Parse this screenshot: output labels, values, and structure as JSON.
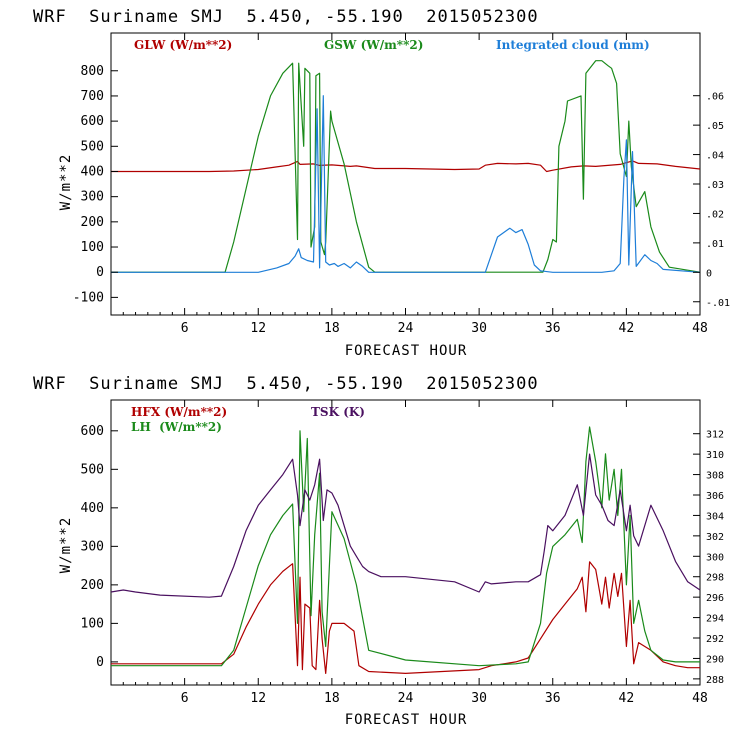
{
  "chart_data": [
    {
      "type": "line",
      "title": "WRF  Suriname SMJ  5.450, -55.190  2015052300",
      "xlabel": "FORECAST HOUR",
      "ylabel": "W/m**2",
      "xlim": [
        0,
        48
      ],
      "ylim": [
        -170,
        950
      ],
      "y2lim": [
        -0.0145,
        0.0813
      ],
      "xticks": [
        "6",
        "12",
        "18",
        "24",
        "30",
        "36",
        "42",
        "48"
      ],
      "yticks": [
        "800",
        "700",
        "600",
        "500",
        "400",
        "300",
        "200",
        "100",
        "0",
        "-100"
      ],
      "y2ticks": [
        ".06",
        ".05",
        ".04",
        ".03",
        ".02",
        ".01",
        "0",
        "-.01"
      ],
      "grid": false,
      "legend": "top, horizontal",
      "series": [
        {
          "name": "GLW (W/m**2)",
          "color": "#b00000",
          "axis": "left",
          "x": [
            0,
            4,
            8,
            10,
            12,
            13.5,
            14.5,
            15.2,
            15.4,
            16.5,
            17,
            18,
            19.5,
            20,
            21.5,
            24,
            26,
            28,
            30,
            30.5,
            31.5,
            33,
            34,
            35,
            35.5,
            36,
            37.5,
            38.5,
            39.5,
            41.5,
            42.5,
            43,
            44.5,
            46,
            48
          ],
          "y": [
            400,
            400,
            400,
            402,
            408,
            418,
            425,
            440,
            428,
            430,
            424,
            426,
            420,
            422,
            412,
            412,
            410,
            408,
            410,
            425,
            432,
            430,
            432,
            425,
            400,
            405,
            418,
            422,
            420,
            428,
            442,
            432,
            430,
            420,
            410
          ]
        },
        {
          "name": "GSW (W/m**2)",
          "color": "#1a8a1a",
          "axis": "left",
          "x": [
            0,
            9.3,
            10,
            11,
            12,
            13,
            14,
            14.8,
            15.2,
            15.3,
            15.7,
            15.8,
            16.2,
            16.3,
            16.6,
            16.7,
            17,
            17.1,
            17.4,
            17.5,
            17.9,
            18,
            19,
            20,
            21,
            21.5,
            35.2,
            35.6,
            36,
            36.3,
            36.5,
            37,
            37.2,
            38.3,
            38.5,
            38.7,
            39.5,
            40,
            40.5,
            40.8,
            41.2,
            41.5,
            42,
            42.2,
            42.4,
            42.8,
            43.5,
            44,
            44.7,
            45.5,
            48
          ],
          "y": [
            0,
            0,
            120,
            330,
            540,
            700,
            790,
            830,
            130,
            830,
            500,
            810,
            790,
            100,
            180,
            780,
            790,
            120,
            70,
            120,
            640,
            600,
            430,
            200,
            20,
            0,
            0,
            50,
            130,
            120,
            500,
            600,
            680,
            700,
            290,
            790,
            840,
            840,
            820,
            810,
            750,
            470,
            380,
            600,
            420,
            260,
            320,
            180,
            80,
            20,
            0
          ]
        },
        {
          "name": "Integrated cloud (mm)",
          "color": "#1e7ed8",
          "axis": "right",
          "x": [
            0,
            12,
            13.5,
            14.5,
            15,
            15.3,
            15.5,
            16,
            16.5,
            16.8,
            17,
            17.3,
            17.5,
            17.8,
            18.2,
            18.5,
            19,
            19.5,
            20,
            20.5,
            21,
            30.5,
            31.5,
            32.5,
            33,
            33.5,
            34,
            34.5,
            35,
            36,
            40,
            41,
            41.5,
            41.8,
            42,
            42.2,
            42.5,
            42.8,
            43.5,
            44,
            44.5,
            45,
            48
          ],
          "y": [
            0,
            0,
            0.0015,
            0.003,
            0.0055,
            0.008,
            0.005,
            0.004,
            0.0035,
            0.0555,
            0.0015,
            0.06,
            0.0035,
            0.0025,
            0.003,
            0.002,
            0.003,
            0.0015,
            0.0035,
            0.002,
            0,
            0,
            0.012,
            0.015,
            0.0135,
            0.0145,
            0.0095,
            0.0025,
            0.0005,
            0,
            0,
            0.0005,
            0.003,
            0.032,
            0.045,
            0.0025,
            0.041,
            0.002,
            0.006,
            0.004,
            0.003,
            0.001,
            0
          ]
        }
      ]
    },
    {
      "type": "line",
      "title": "WRF  Suriname SMJ  5.450, -55.190  2015052300",
      "xlabel": "FORECAST HOUR",
      "ylabel": "W/m**2",
      "xlim": [
        0,
        48
      ],
      "ylim": [
        -60,
        680
      ],
      "y2lim": [
        287.4,
        315.3
      ],
      "xticks": [
        "6",
        "12",
        "18",
        "24",
        "30",
        "36",
        "42",
        "48"
      ],
      "yticks": [
        "600",
        "500",
        "400",
        "300",
        "200",
        "100",
        "0"
      ],
      "y2ticks": [
        "312",
        "310",
        "308",
        "306",
        "304",
        "302",
        "300",
        "298",
        "296",
        "294",
        "292",
        "290",
        "288"
      ],
      "grid": false,
      "legend": "top-left",
      "series": [
        {
          "name": "HFX (W/m**2)",
          "color": "#b00000",
          "axis": "left",
          "x": [
            0,
            9,
            10,
            11,
            12,
            13,
            14,
            14.8,
            15.2,
            15.4,
            15.6,
            15.8,
            16.2,
            16.4,
            16.7,
            17,
            17.2,
            17.5,
            17.8,
            18,
            19,
            19.8,
            20.2,
            21,
            24,
            30,
            31,
            32,
            33,
            34,
            35,
            36,
            37,
            38,
            38.4,
            38.7,
            39,
            39.5,
            40,
            40.3,
            40.6,
            41,
            41.3,
            41.6,
            42,
            42.3,
            42.6,
            43,
            44,
            45,
            46,
            47,
            48
          ],
          "y": [
            -5,
            -5,
            20,
            90,
            150,
            200,
            235,
            255,
            -10,
            220,
            -20,
            150,
            140,
            -10,
            -20,
            160,
            60,
            -30,
            80,
            100,
            100,
            80,
            -10,
            -25,
            -30,
            -20,
            -10,
            -5,
            0,
            10,
            60,
            110,
            150,
            190,
            220,
            130,
            260,
            240,
            150,
            220,
            140,
            230,
            170,
            230,
            40,
            160,
            -5,
            50,
            30,
            0,
            -10,
            -15,
            -15
          ]
        },
        {
          "name": "LH  (W/m**2)",
          "color": "#1a8a1a",
          "axis": "left",
          "x": [
            0,
            9,
            10,
            11,
            12,
            13,
            14,
            14.8,
            15.2,
            15.4,
            15.7,
            16,
            16.3,
            16.6,
            17,
            17.2,
            17.5,
            17.8,
            18,
            19,
            20,
            21,
            24,
            30,
            33,
            34,
            35,
            35.5,
            36,
            37,
            38,
            38.4,
            38.7,
            39,
            39.5,
            40,
            40.3,
            40.6,
            41,
            41.3,
            41.6,
            42,
            42.3,
            42.6,
            43,
            43.5,
            44,
            45,
            46,
            48
          ],
          "y": [
            -10,
            -10,
            30,
            140,
            250,
            330,
            380,
            410,
            100,
            600,
            390,
            580,
            120,
            330,
            490,
            130,
            40,
            250,
            390,
            320,
            200,
            30,
            5,
            -10,
            -5,
            0,
            100,
            230,
            300,
            330,
            370,
            310,
            520,
            610,
            520,
            400,
            540,
            420,
            500,
            380,
            500,
            200,
            380,
            100,
            160,
            80,
            30,
            5,
            0,
            0
          ]
        },
        {
          "name": "TSK (K)",
          "color": "#4a1060",
          "axis": "right",
          "x": [
            0,
            1,
            2,
            4,
            8,
            9,
            10,
            11,
            12,
            13,
            14,
            14.8,
            15.2,
            15.4,
            15.8,
            16.2,
            16.6,
            17,
            17.3,
            17.6,
            18,
            18.5,
            19,
            19.5,
            20,
            20.5,
            21,
            22,
            24,
            28,
            30,
            30.5,
            31,
            33,
            34,
            35,
            35.3,
            35.6,
            36,
            37,
            38,
            38.5,
            39,
            39.5,
            40,
            40.5,
            41,
            41.5,
            42,
            42.3,
            42.6,
            43,
            44,
            45,
            46,
            47,
            48
          ],
          "y": [
            296.5,
            296.7,
            296.5,
            296.2,
            296,
            296.1,
            299,
            302.5,
            305,
            306.5,
            308,
            309.5,
            306,
            303,
            306.5,
            305.5,
            307,
            309.5,
            303.5,
            306.5,
            306.2,
            305,
            303,
            301,
            300,
            299,
            298.5,
            298,
            298,
            297.5,
            296.5,
            297.5,
            297.3,
            297.5,
            297.5,
            298.2,
            300.5,
            303,
            302.5,
            304,
            307,
            304,
            310,
            306,
            305,
            303.5,
            303,
            306.5,
            302.5,
            305,
            302,
            301,
            305,
            302.5,
            299.5,
            297.5,
            296.7
          ]
        }
      ]
    }
  ]
}
